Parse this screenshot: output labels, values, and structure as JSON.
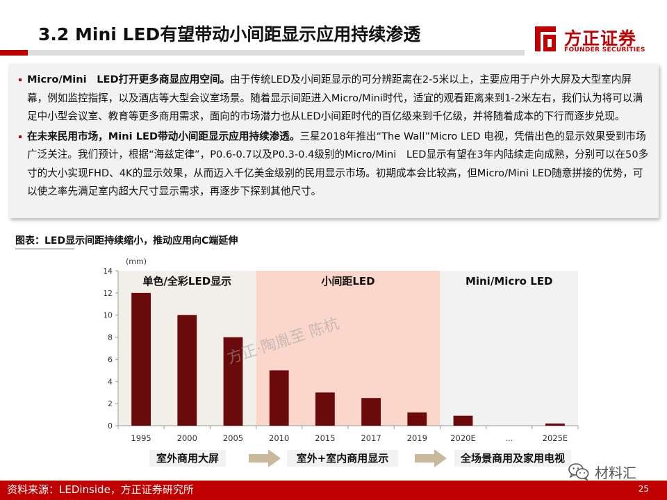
{
  "slide": {
    "title": "3.2 Mini LED有望带动小间距显示应用持续渗透",
    "page_number": "25",
    "source": "资料来源：LEDinside，方正证券研究所"
  },
  "logo": {
    "cn": "方正证券",
    "en": "FOUNDER SECURITIES",
    "color": "#c00000"
  },
  "textbox": {
    "p1_bold": "Micro/Mini　LED打开更多商显应用空间。",
    "p1_text": "由于传统LED及小间距显示的可分辨距离在2-5米以上，主要应用于户外大屏及大型室内屏幕，例如监控指挥，以及酒店等大型会议室场景。随着显示间距进入Micro/Mini时代，适宜的观看距离来到1-2米左右，我们认为将可以满足中小型会议室、教育等更多商用需求，面向的市场潜力也从LED小间距时代的百亿级来到千亿级，并将随着成本的下行而逐步兑现。",
    "p2_bold": "在未来民用市场，Mini LED带动小间距显示应用持续渗透。",
    "p2_text": "三星2018年推出“The Wall”Micro LED 电视，凭借出色的显示效果受到市场广泛关注。我们预计，根据“海兹定律”，P0.6-0.7以及P0.3-0.4级别的Micro/Mini　LED显示有望在3年内陆续走向成熟，分别可以在50多寸的大小实现FHD、4K的显示效果，从而迈入千亿美金级别的民用显示市场。初期成本会比较高，但Micro/Mini LED随意拼接的优势，可以使之率先满足室内超大尺寸显示需求，再逐步下探到其他尺寸。"
  },
  "figure": {
    "caption": "图表：LED显示间距持续缩小，推动应用向C端延伸"
  },
  "chart_data": {
    "type": "bar",
    "unit_label": "(mm)",
    "categories": [
      "1995",
      "2000",
      "2005",
      "2010",
      "2015",
      "2017",
      "2019",
      "2020E",
      "...",
      "2025E"
    ],
    "values": [
      12,
      10,
      8,
      5,
      3,
      2.5,
      1.2,
      0.9,
      null,
      0.2
    ],
    "ylim": [
      0,
      14
    ],
    "yticks": [
      0,
      2,
      4,
      6,
      8,
      10,
      12,
      14
    ],
    "bar_color": "#6b0a0a",
    "grid": false,
    "regions": [
      {
        "label": "单色/全彩LED显示",
        "from_index": 0,
        "to_index": 2,
        "color": "#f2efe8"
      },
      {
        "label": "小间距LED",
        "from_index": 3,
        "to_index": 6,
        "color": "#fbd6cb"
      },
      {
        "label": "Mini/Micro LED",
        "from_index": 7,
        "to_index": 9,
        "color": "#f2f2f2"
      }
    ]
  },
  "applications": {
    "items": [
      "室外商用大屏",
      "室外+室内商用显示",
      "全场景商用及家用电视"
    ],
    "arrow_color": "#c9b89a"
  },
  "watermark": "方正·陶胤至 陈杭",
  "wechat": {
    "label": "材料汇",
    "icon": "wechat-icon"
  }
}
